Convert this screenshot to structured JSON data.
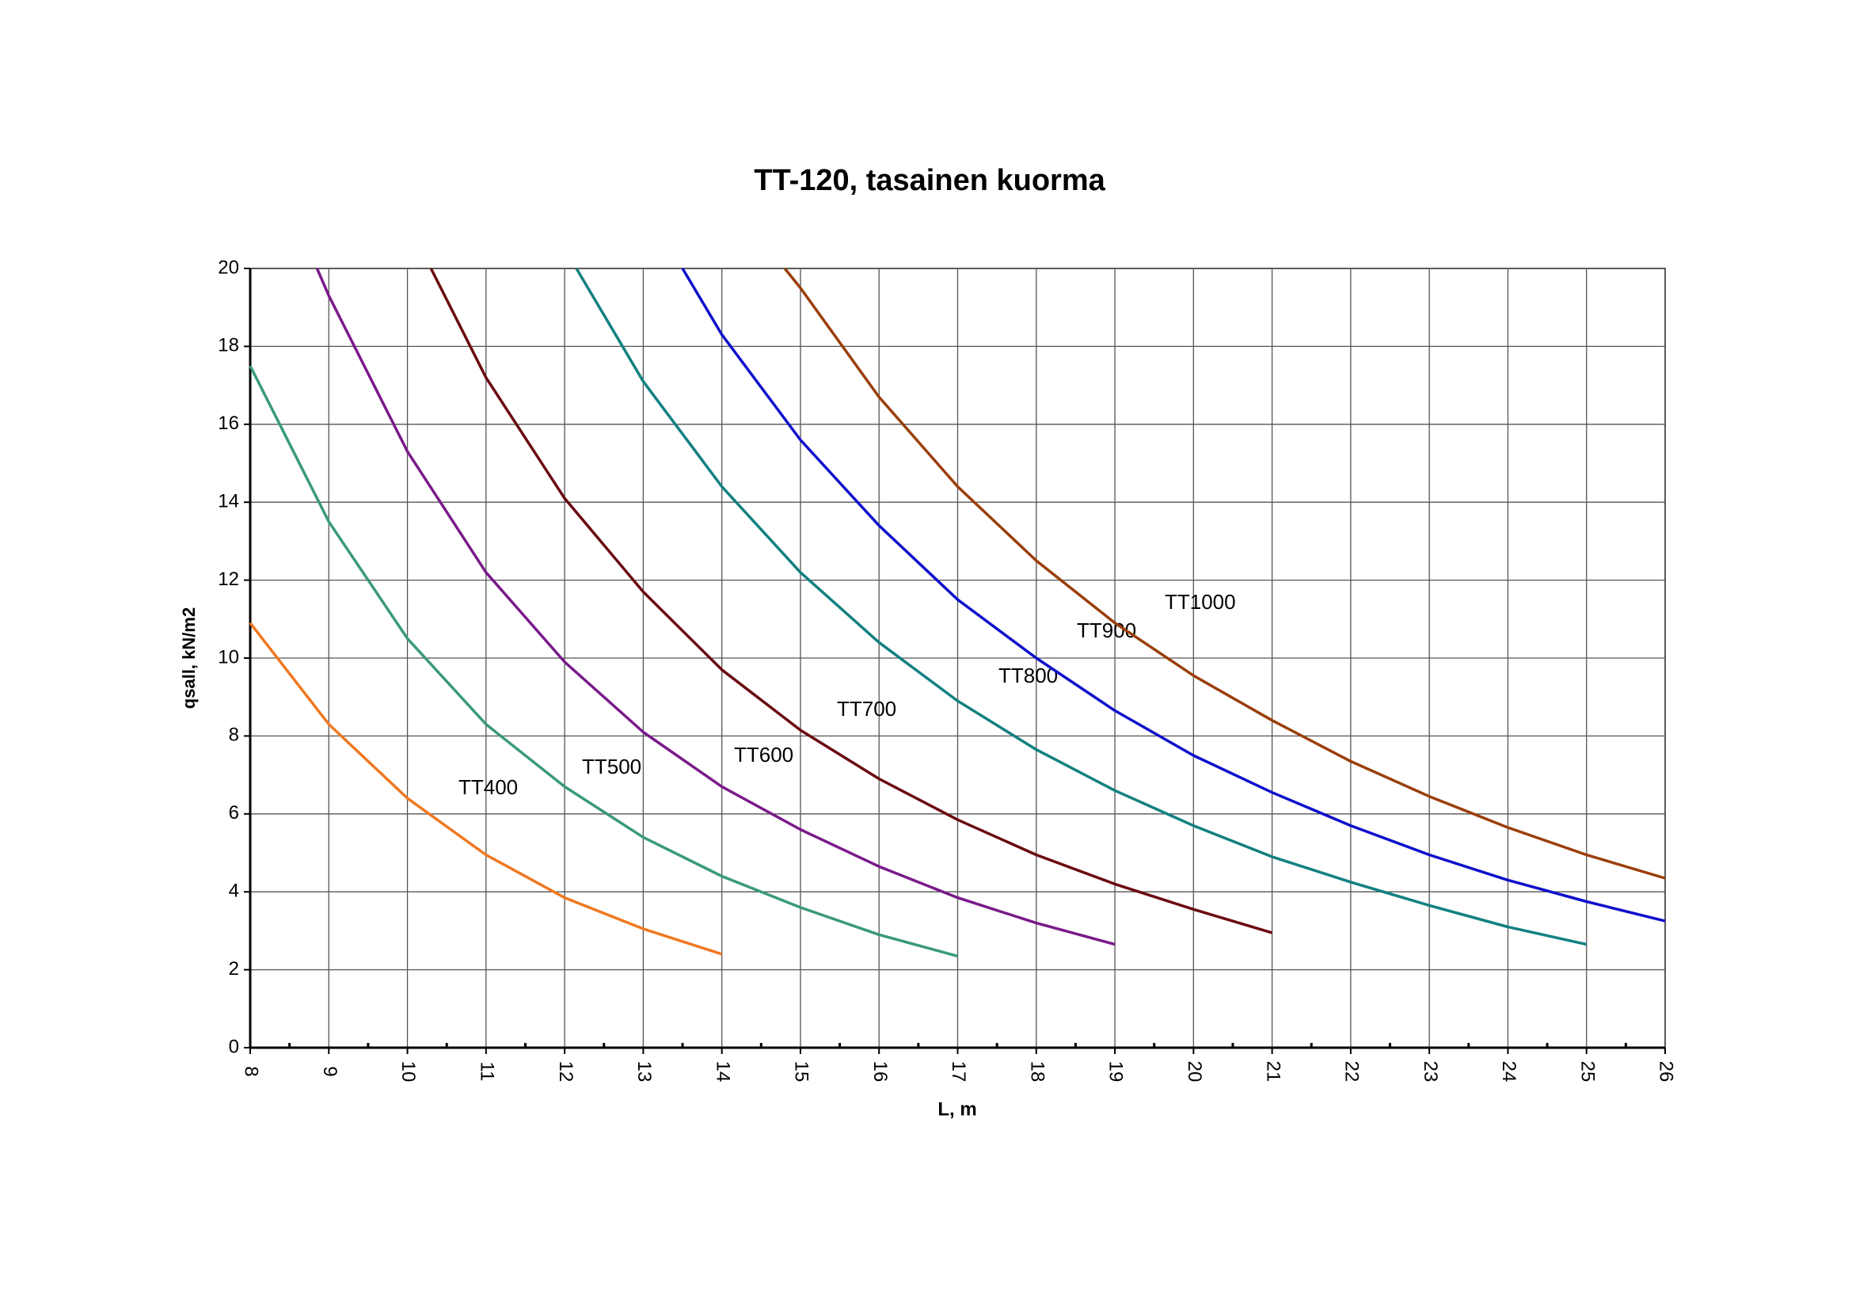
{
  "chart_data": {
    "type": "line",
    "title": "TT-120, tasainen kuorma",
    "x_label": "L, m",
    "y_label": "qsall, kN/m2",
    "xlim": [
      8,
      26
    ],
    "ylim": [
      0,
      20
    ],
    "xticks": [
      8,
      9,
      10,
      11,
      12,
      13,
      14,
      15,
      16,
      17,
      18,
      19,
      20,
      21,
      22,
      23,
      24,
      25,
      26
    ],
    "yticks": [
      0,
      2,
      4,
      6,
      8,
      10,
      12,
      14,
      16,
      18,
      20
    ],
    "grid": true,
    "series": [
      {
        "name": "TT400",
        "color": "#f07820",
        "x": [
          8,
          9,
          10,
          11,
          12,
          13,
          14
        ],
        "values": [
          10.9,
          8.3,
          6.4,
          4.95,
          3.85,
          3.05,
          2.4
        ]
      },
      {
        "name": "TT500",
        "color": "#3a9a78",
        "x": [
          8,
          9,
          10,
          11,
          12,
          13,
          14,
          15,
          16,
          17
        ],
        "values": [
          17.5,
          13.5,
          10.5,
          8.3,
          6.7,
          5.4,
          4.4,
          3.6,
          2.9,
          2.35
        ]
      },
      {
        "name": "TT600",
        "color": "#7a1a8a",
        "x": [
          8.85,
          9,
          10,
          11,
          12,
          13,
          14,
          15,
          16,
          17,
          18,
          19
        ],
        "values": [
          20,
          19.3,
          15.3,
          12.2,
          9.9,
          8.1,
          6.7,
          5.6,
          4.65,
          3.85,
          3.2,
          2.65
        ]
      },
      {
        "name": "TT700",
        "color": "#6a0a10",
        "x": [
          10.3,
          11,
          12,
          13,
          14,
          15,
          16,
          17,
          18,
          19,
          20,
          21
        ],
        "values": [
          20,
          17.2,
          14.1,
          11.7,
          9.7,
          8.15,
          6.9,
          5.85,
          4.95,
          4.2,
          3.55,
          2.95
        ]
      },
      {
        "name": "TT800",
        "color": "#128080",
        "x": [
          12.15,
          13,
          14,
          15,
          16,
          17,
          18,
          19,
          20,
          21,
          22,
          23,
          24,
          25
        ],
        "values": [
          20,
          17.1,
          14.4,
          12.2,
          10.4,
          8.9,
          7.65,
          6.6,
          5.7,
          4.9,
          4.25,
          3.65,
          3.1,
          2.65
        ]
      },
      {
        "name": "TT900",
        "color": "#1010cc",
        "x": [
          13.5,
          14,
          15,
          16,
          17,
          18,
          19,
          20,
          21,
          22,
          23,
          24,
          25,
          26
        ],
        "values": [
          20,
          18.3,
          15.6,
          13.4,
          11.5,
          10.0,
          8.65,
          7.5,
          6.55,
          5.7,
          4.95,
          4.3,
          3.75,
          3.25
        ]
      },
      {
        "name": "TT1000",
        "color": "#9a3e0a",
        "x": [
          14.8,
          15,
          16,
          17,
          18,
          19,
          20,
          21,
          22,
          23,
          24,
          25,
          26
        ],
        "values": [
          20,
          19.5,
          16.7,
          14.4,
          12.5,
          10.9,
          9.55,
          8.4,
          7.35,
          6.45,
          5.65,
          4.95,
          4.35
        ]
      }
    ]
  }
}
